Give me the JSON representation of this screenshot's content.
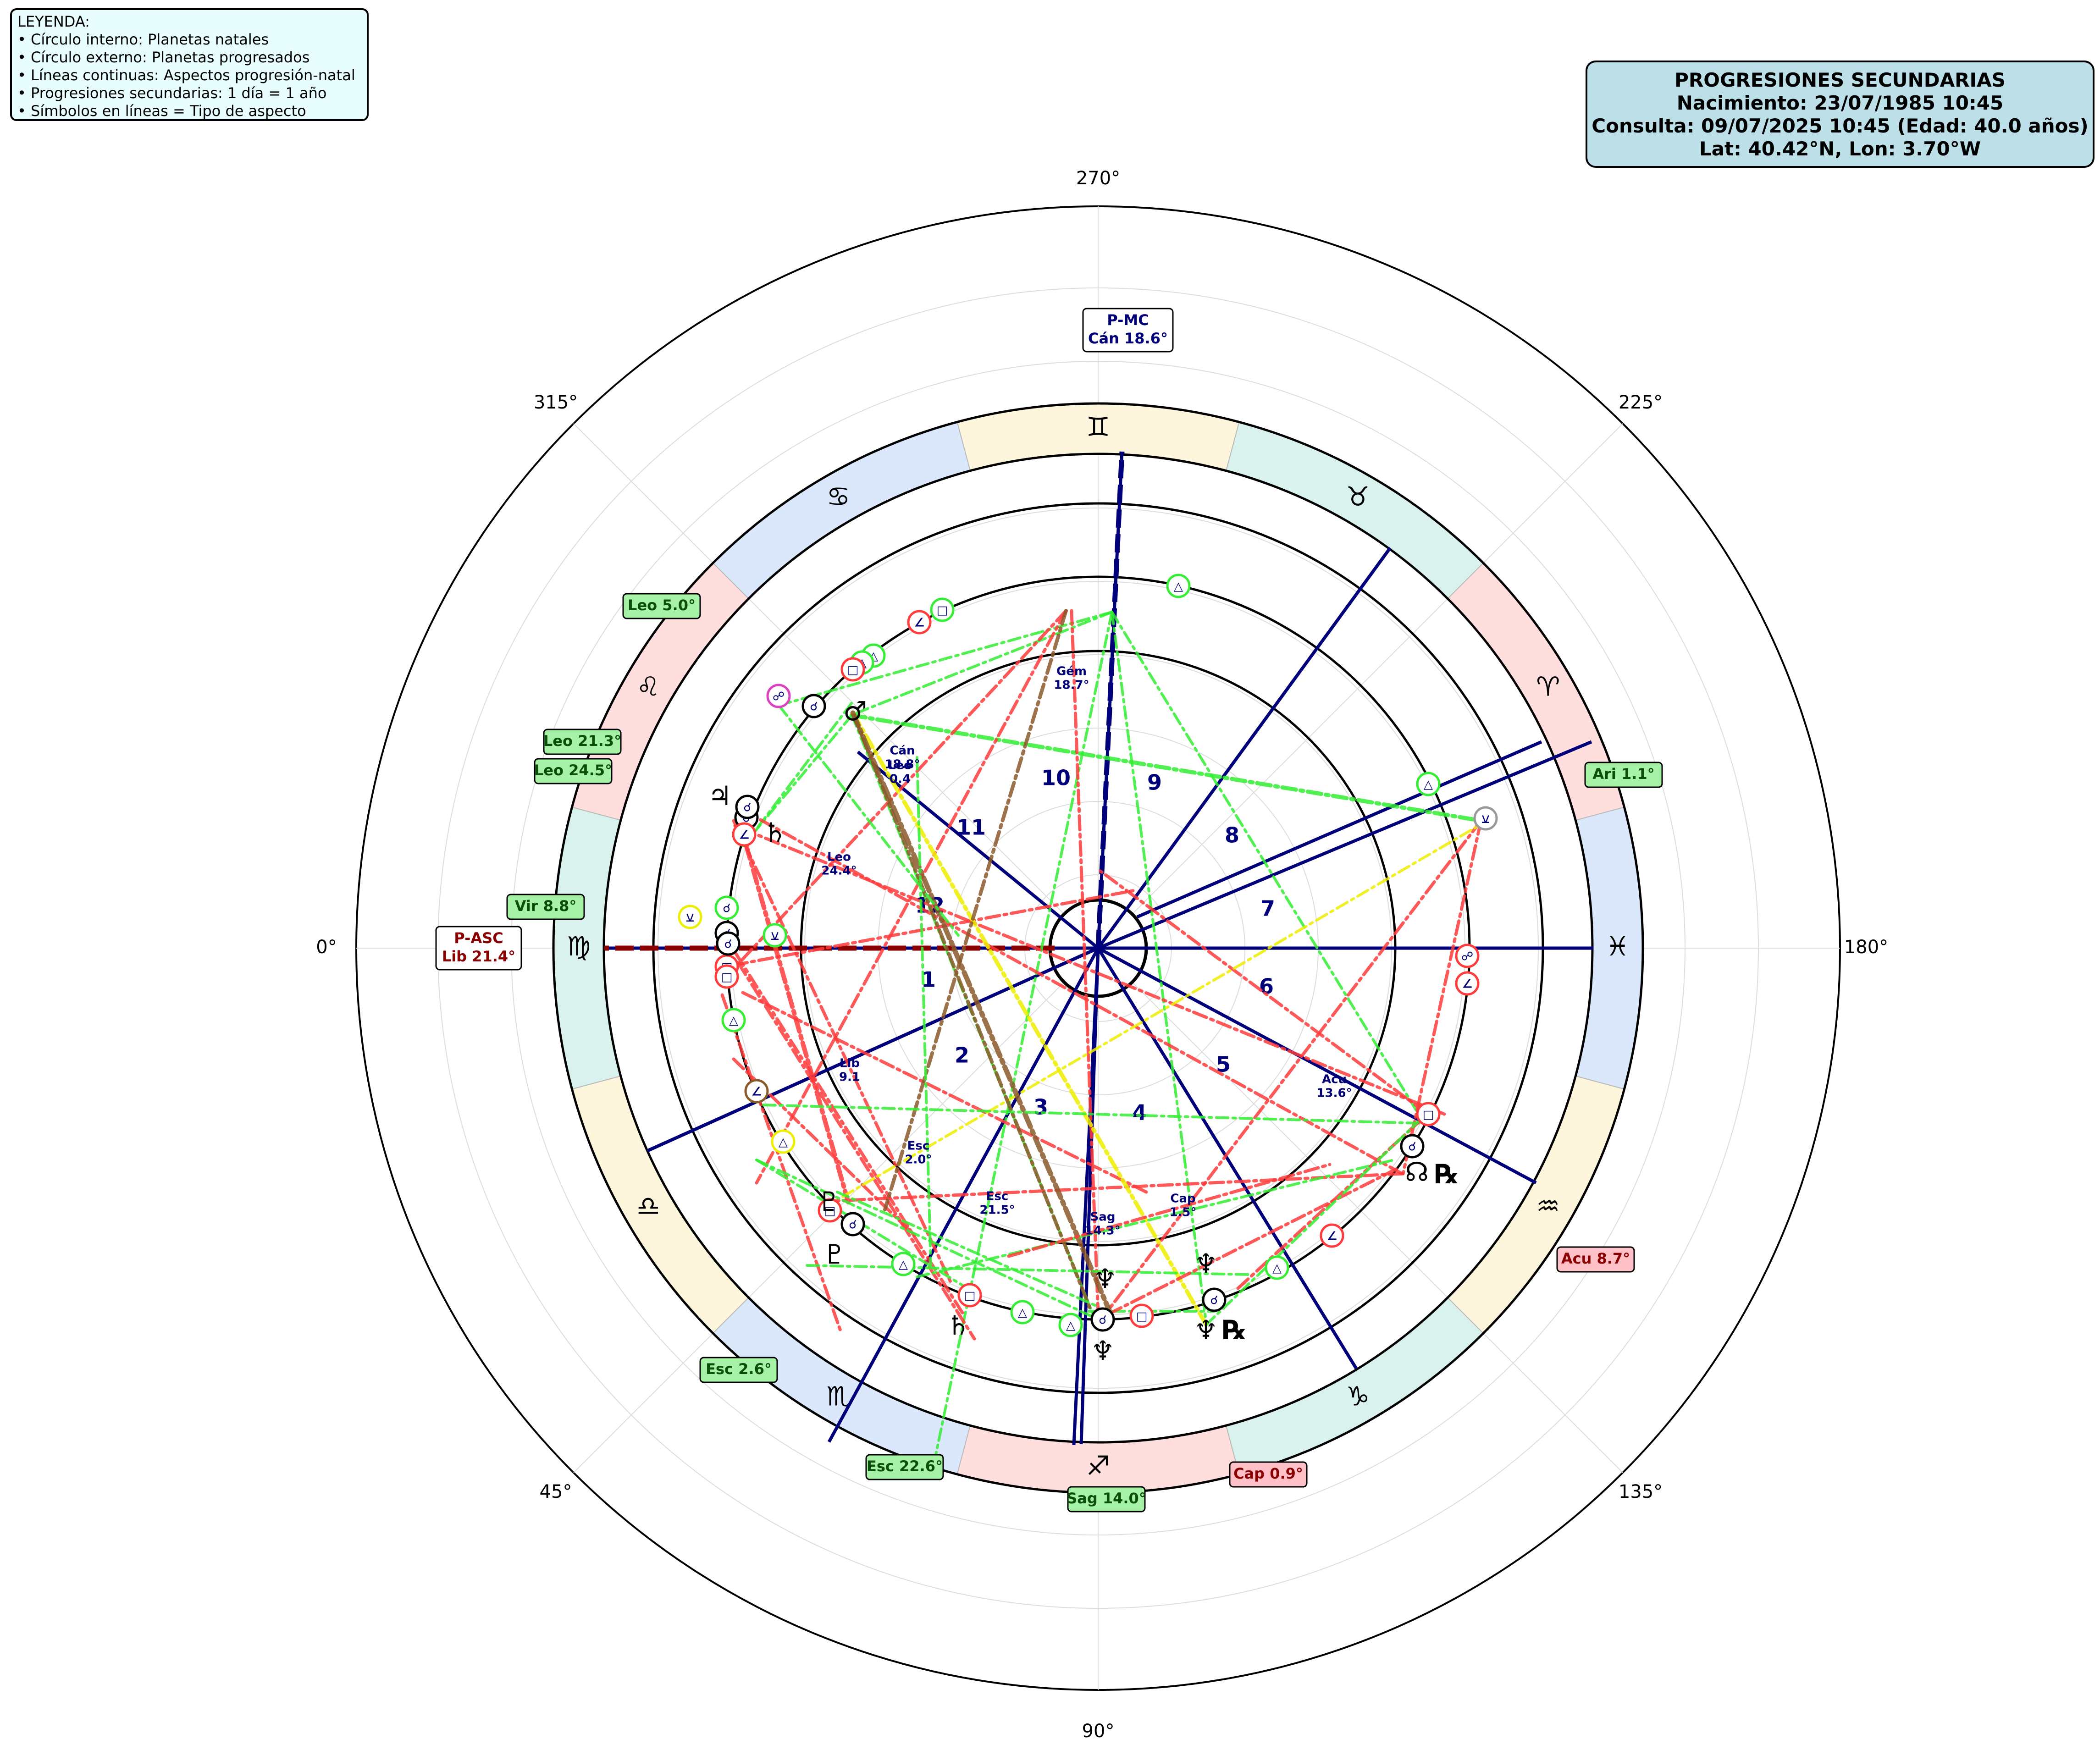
{
  "legend": {
    "lines": [
      "LEYENDA:",
      "• Círculo interno: Planetas natales",
      "• Círculo externo: Planetas progresados",
      "• Líneas continuas: Aspectos progresión-natal",
      "• Progresiones secundarias: 1 día = 1 año",
      "• Símbolos en líneas = Tipo de aspecto"
    ]
  },
  "info": {
    "title": "PROGRESIONES SECUNDARIAS",
    "birth": "Nacimiento: 23/07/1985 10:45",
    "query": "Consulta: 09/07/2025 10:45 (Edad: 40.0 años)",
    "location": "Lat: 40.42°N, Lon: 3.70°W"
  },
  "degree_labels": [
    "0°",
    "45°",
    "90°",
    "135°",
    "180°",
    "225°",
    "270°",
    "315°"
  ],
  "signs": [
    {
      "glyph": "♈",
      "color": "#ffdede"
    },
    {
      "glyph": "♉",
      "color": "#d9f2ee"
    },
    {
      "glyph": "♊",
      "color": "#fef6dc"
    },
    {
      "glyph": "♋",
      "color": "#dbe8fb"
    },
    {
      "glyph": "♌",
      "color": "#ffdede"
    },
    {
      "glyph": "♍",
      "color": "#d9f2ee"
    },
    {
      "glyph": "♎",
      "color": "#fef6dc"
    },
    {
      "glyph": "♏",
      "color": "#dbe8fb"
    },
    {
      "glyph": "♐",
      "color": "#ffdede"
    },
    {
      "glyph": "♑",
      "color": "#d9f2ee"
    },
    {
      "glyph": "♒",
      "color": "#fef6dc"
    },
    {
      "glyph": "♓",
      "color": "#dbe8fb"
    }
  ],
  "houses": [
    "1",
    "2",
    "3",
    "4",
    "5",
    "6",
    "7",
    "8",
    "9",
    "10",
    "11",
    "12"
  ],
  "progressed_angles": {
    "mc": {
      "line1": "P-MC",
      "line2": "Cán 18.6°"
    },
    "asc": {
      "line1": "P-ASC",
      "line2": "Lib 21.4°"
    }
  },
  "outer_tags": [
    {
      "text": "Leo 5.0°",
      "fill": "#a6f2a6",
      "color": "#0b4d0b"
    },
    {
      "text": "Leo 21.3°",
      "fill": "#a6f2a6",
      "color": "#0b4d0b"
    },
    {
      "text": "Leo 24.5°",
      "fill": "#a6f2a6",
      "color": "#0b4d0b"
    },
    {
      "text": "Vir 8.8°",
      "fill": "#a6f2a6",
      "color": "#0b4d0b"
    },
    {
      "text": "Ari 1.1°",
      "fill": "#a6f2a6",
      "color": "#0b4d0b"
    },
    {
      "text": "Acu 8.7°",
      "fill": "#ffc0c8",
      "color": "#8a0000"
    },
    {
      "text": "Esc 2.6°",
      "fill": "#a6f2a6",
      "color": "#0b4d0b"
    },
    {
      "text": "Esc 22.6°",
      "fill": "#a6f2a6",
      "color": "#0b4d0b"
    },
    {
      "text": "Sag 14.0°",
      "fill": "#a6f2a6",
      "color": "#0b4d0b"
    },
    {
      "text": "Cap 0.9°",
      "fill": "#ffc0c8",
      "color": "#8a0000"
    }
  ],
  "natal_labels": [
    {
      "l1": "Gém",
      "l2": "18.7°"
    },
    {
      "l1": "Cán",
      "l2": "18.8°"
    },
    {
      "l1": "Leo",
      "l2": "0.4"
    },
    {
      "l1": "Leo",
      "l2": "24.4°"
    },
    {
      "l1": "Lib",
      "l2": "9.1"
    },
    {
      "l1": "Esc",
      "l2": "2.0°"
    },
    {
      "l1": "Esc",
      "l2": "21.5°"
    },
    {
      "l1": "Sag",
      "l2": "14.3°"
    },
    {
      "l1": "Cap",
      "l2": "1.5°"
    },
    {
      "l1": "Acu",
      "l2": "13.6°"
    }
  ],
  "retro_marks": [
    "℞",
    "℞"
  ],
  "aspect_colors": {
    "square": "#ff3b3b",
    "trine": "#33ee33",
    "conjunction": "#8b5a2b",
    "sextile": "#eeee00",
    "axis": "#00007a",
    "asc_line": "#8b0000"
  },
  "aspect_glyphs": {
    "conjunction": "☌",
    "opposition": "☍",
    "trine": "△",
    "square": "□",
    "sextile": "⚹",
    "semisextile": "⚺",
    "quincunx": "⚻",
    "semisquare": "∠"
  },
  "planet_glyphs": [
    "☉",
    "☽",
    "☿",
    "♀",
    "♂",
    "♃",
    "♄",
    "♅",
    "♆",
    "♇",
    "☊"
  ]
}
